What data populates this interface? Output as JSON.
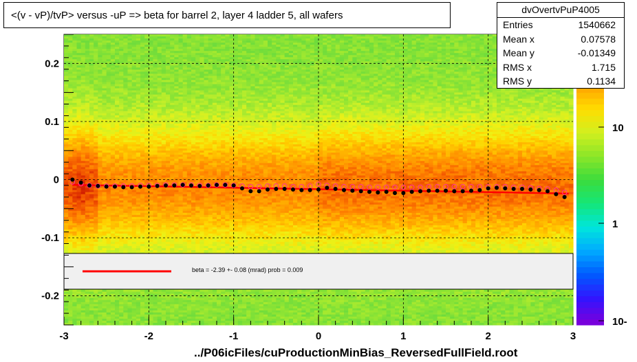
{
  "title": "<(v - vP)/tvP> versus  -uP => beta for barrel 2, layer 4 ladder 5, all wafers",
  "x_axis_title": "../P06icFiles/cuProductionMinBias_ReversedFullField.root",
  "stats": {
    "name": "dvOvertvPuP4005",
    "rows": [
      {
        "key": "Entries",
        "value": "1540662"
      },
      {
        "key": "Mean x",
        "value": "0.07578"
      },
      {
        "key": "Mean y",
        "value": "-0.01349"
      },
      {
        "key": "RMS x",
        "value": "1.715"
      },
      {
        "key": "RMS y",
        "value": "0.1134"
      }
    ]
  },
  "legend": {
    "fit_text": "beta =   -2.39 +-  0.08 (mrad) prob = 0.009",
    "line_color": "#ff0000"
  },
  "chart_data": {
    "type": "heatmap",
    "xlim": [
      -3,
      3
    ],
    "ylim": [
      -0.25,
      0.25
    ],
    "x_ticks": [
      -3,
      -2,
      -1,
      0,
      1,
      2,
      3
    ],
    "x_tick_labels": [
      "-3",
      "-2",
      "-1",
      "0",
      "1",
      "2",
      "3"
    ],
    "y_ticks": [
      -0.2,
      -0.1,
      0,
      0.1,
      0.2
    ],
    "y_tick_labels": [
      "-0.2",
      "-0.1",
      "0",
      "0.1",
      "0.2"
    ],
    "color_scale": {
      "type": "log",
      "tick_labels": [
        "10",
        "1",
        "10-"
      ]
    },
    "grid": true,
    "profile_points": {
      "color": "#000000",
      "x": [
        -2.9,
        -2.8,
        -2.7,
        -2.6,
        -2.5,
        -2.4,
        -2.3,
        -2.2,
        -2.1,
        -2.0,
        -1.9,
        -1.8,
        -1.7,
        -1.6,
        -1.5,
        -1.4,
        -1.3,
        -1.2,
        -1.1,
        -1.0,
        -0.9,
        -0.8,
        -0.7,
        -0.6,
        -0.5,
        -0.4,
        -0.3,
        -0.2,
        -0.1,
        0.0,
        0.1,
        0.2,
        0.3,
        0.4,
        0.5,
        0.6,
        0.7,
        0.8,
        0.9,
        1.0,
        1.1,
        1.2,
        1.3,
        1.4,
        1.5,
        1.6,
        1.7,
        1.8,
        1.9,
        2.0,
        2.1,
        2.2,
        2.3,
        2.4,
        2.5,
        2.6,
        2.7,
        2.8,
        2.9
      ],
      "y": [
        0.0,
        -0.005,
        -0.01,
        -0.011,
        -0.012,
        -0.012,
        -0.013,
        -0.013,
        -0.012,
        -0.012,
        -0.011,
        -0.01,
        -0.01,
        -0.009,
        -0.01,
        -0.011,
        -0.01,
        -0.009,
        -0.009,
        -0.01,
        -0.015,
        -0.02,
        -0.02,
        -0.017,
        -0.016,
        -0.016,
        -0.017,
        -0.018,
        -0.018,
        -0.017,
        -0.014,
        -0.016,
        -0.018,
        -0.019,
        -0.02,
        -0.021,
        -0.022,
        -0.021,
        -0.023,
        -0.023,
        -0.021,
        -0.02,
        -0.019,
        -0.019,
        -0.019,
        -0.02,
        -0.02,
        -0.019,
        -0.018,
        -0.015,
        -0.014,
        -0.015,
        -0.016,
        -0.016,
        -0.017,
        -0.018,
        -0.02,
        -0.025,
        -0.03
      ]
    },
    "comparison_points": {
      "color": "#ff3399",
      "x": [
        -2.9,
        -2.8,
        -2.7,
        -2.6,
        -2.5,
        -2.4,
        -2.3,
        -2.2,
        -2.1,
        -2.0,
        -1.9,
        -1.8,
        -1.7,
        -1.6,
        -1.5,
        -1.4,
        -1.3,
        -1.2,
        -1.1,
        -1.0,
        -0.9,
        -0.8,
        -0.7,
        -0.6,
        -0.5,
        -0.4,
        -0.3,
        -0.2,
        -0.1,
        0.0,
        0.1,
        0.2,
        0.3,
        0.4,
        0.5,
        0.6,
        0.7,
        0.8,
        0.9,
        1.0,
        1.1,
        1.2,
        1.3,
        1.4,
        1.5,
        1.6,
        1.7,
        1.8,
        1.9,
        2.0,
        2.1,
        2.2,
        2.3,
        2.4,
        2.5,
        2.6,
        2.7,
        2.8,
        2.9
      ],
      "y": [
        -0.004,
        -0.007,
        -0.01,
        -0.011,
        -0.011,
        -0.011,
        -0.011,
        -0.011,
        -0.01,
        -0.01,
        -0.01,
        -0.009,
        -0.009,
        -0.009,
        -0.009,
        -0.01,
        -0.01,
        -0.009,
        -0.009,
        -0.01,
        -0.011,
        -0.012,
        -0.012,
        -0.011,
        -0.011,
        -0.011,
        -0.012,
        -0.012,
        -0.011,
        -0.008,
        -0.01,
        -0.011,
        -0.012,
        -0.012,
        -0.012,
        -0.013,
        -0.013,
        -0.013,
        -0.013,
        -0.013,
        -0.013,
        -0.013,
        -0.012,
        -0.012,
        -0.012,
        -0.012,
        -0.012,
        -0.012,
        -0.012,
        -0.012,
        -0.012,
        -0.012,
        -0.013,
        -0.013,
        -0.014,
        -0.015,
        -0.016,
        -0.018,
        -0.022
      ]
    },
    "fit_line": {
      "color": "#ff0000",
      "x": [
        -2.9,
        2.95
      ],
      "y": [
        -0.009,
        -0.024
      ]
    }
  }
}
